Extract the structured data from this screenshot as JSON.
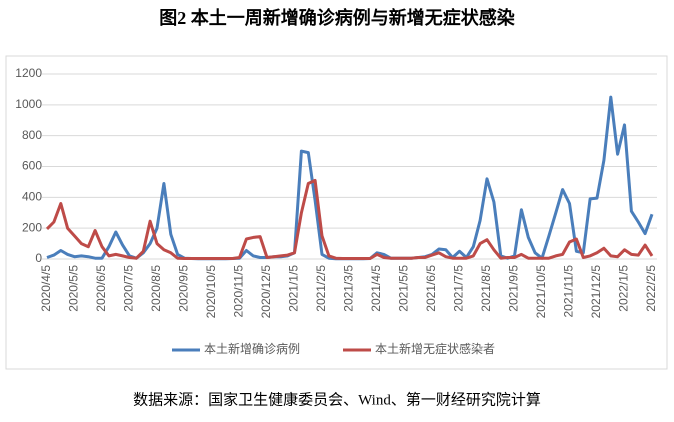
{
  "chart_data": {
    "type": "line",
    "title": "图2 本土一周新增确诊病例与新增无症状感染",
    "source": "数据来源：国家卫生健康委员会、Wind、第一财经研究院计算",
    "categories": [
      "2020/4/5",
      null,
      null,
      null,
      "2020/5/5",
      null,
      null,
      null,
      "2020/6/5",
      null,
      null,
      null,
      "2020/7/5",
      null,
      null,
      null,
      "2020/8/5",
      null,
      null,
      null,
      "2020/9/5",
      null,
      null,
      null,
      "2020/10/5",
      null,
      null,
      null,
      "2020/11/5",
      null,
      null,
      null,
      "2020/12/5",
      null,
      null,
      null,
      "2021/1/5",
      null,
      null,
      null,
      "2021/2/5",
      null,
      null,
      null,
      "2021/3/5",
      null,
      null,
      null,
      "2021/4/5",
      null,
      null,
      null,
      "2021/5/5",
      null,
      null,
      null,
      "2021/6/5",
      null,
      null,
      null,
      "2021/7/5",
      null,
      null,
      null,
      "2021/8/5",
      null,
      null,
      null,
      "2021/9/5",
      null,
      null,
      null,
      "2021/10/5",
      null,
      null,
      null,
      "2021/11/5",
      null,
      null,
      null,
      "2021/12/5",
      null,
      null,
      null,
      "2022/1/5",
      null,
      null,
      null,
      "2022/2/5"
    ],
    "series": [
      {
        "name": "本土新增确诊病例",
        "color": "#4a7ebb",
        "values": [
          10,
          25,
          55,
          30,
          15,
          20,
          15,
          5,
          5,
          80,
          175,
          90,
          20,
          5,
          40,
          100,
          200,
          490,
          160,
          30,
          5,
          3,
          2,
          2,
          2,
          2,
          2,
          3,
          5,
          55,
          20,
          10,
          10,
          15,
          15,
          20,
          40,
          700,
          690,
          380,
          30,
          5,
          2,
          2,
          2,
          2,
          2,
          3,
          40,
          30,
          5,
          5,
          5,
          5,
          10,
          15,
          30,
          65,
          60,
          10,
          50,
          10,
          80,
          250,
          520,
          370,
          20,
          5,
          20,
          320,
          140,
          40,
          5,
          150,
          300,
          450,
          360,
          50,
          40,
          390,
          395,
          640,
          1050,
          680,
          870,
          310,
          240,
          165,
          290
        ]
      },
      {
        "name": "本土新增无症状感染者",
        "color": "#be4b48",
        "values": [
          195,
          240,
          360,
          200,
          150,
          100,
          80,
          185,
          80,
          20,
          30,
          20,
          10,
          5,
          50,
          245,
          100,
          60,
          40,
          5,
          3,
          3,
          3,
          3,
          3,
          3,
          3,
          3,
          10,
          130,
          140,
          145,
          10,
          15,
          20,
          25,
          40,
          300,
          490,
          510,
          150,
          20,
          5,
          3,
          3,
          3,
          3,
          3,
          30,
          10,
          5,
          5,
          5,
          5,
          10,
          10,
          25,
          40,
          15,
          5,
          5,
          5,
          20,
          100,
          125,
          60,
          5,
          10,
          10,
          30,
          5,
          5,
          5,
          5,
          20,
          30,
          110,
          130,
          10,
          20,
          40,
          70,
          20,
          15,
          60,
          30,
          25,
          90,
          20
        ]
      }
    ],
    "ylim": [
      0,
      1200
    ],
    "yticks": [
      0,
      200,
      400,
      600,
      800,
      1000,
      1200
    ],
    "grid": true
  }
}
